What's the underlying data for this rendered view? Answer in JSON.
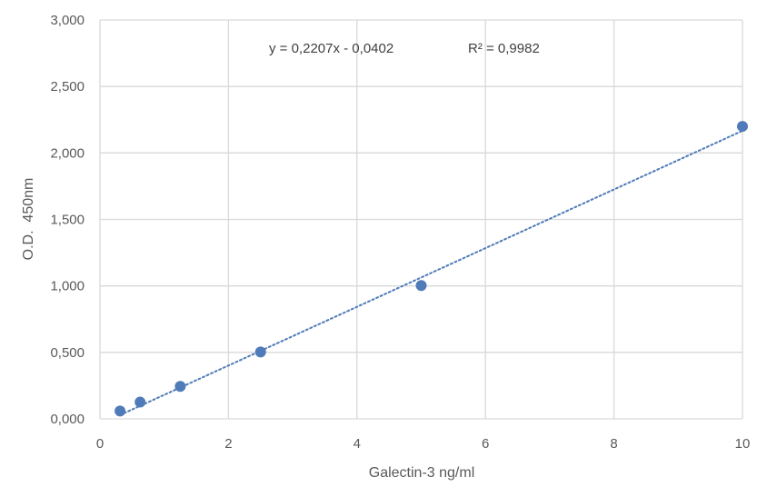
{
  "chart_data": {
    "type": "scatter",
    "xlabel": "Galectin-3 ng/ml",
    "ylabel": "O.D.  450nm",
    "xlim": [
      0,
      10
    ],
    "ylim": [
      0,
      3
    ],
    "x_ticks": [
      0,
      2,
      4,
      6,
      8,
      10
    ],
    "x_tick_labels": [
      "0",
      "2",
      "4",
      "6",
      "8",
      "10"
    ],
    "y_ticks": [
      0,
      0.5,
      1,
      1.5,
      2,
      2.5,
      3
    ],
    "y_tick_labels": [
      "0,000",
      "0,500",
      "1,000",
      "1,500",
      "2,000",
      "2,500",
      "3,000"
    ],
    "grid": true,
    "series": [
      {
        "x": [
          0.3125,
          0.625,
          1.25,
          2.5,
          5,
          10
        ],
        "y": [
          0.059,
          0.126,
          0.244,
          0.503,
          1.003,
          2.2
        ],
        "color": "#4f7bb8"
      }
    ],
    "trendline": {
      "type": "linear",
      "slope": 0.2207,
      "intercept": -0.0402,
      "x_range": [
        0.3125,
        10
      ],
      "color": "#4f7bb8",
      "style": "dotted"
    },
    "annotations": {
      "equation": "y = 0,2207x - 0,0402",
      "r_squared": "R² = 0,9982"
    }
  }
}
